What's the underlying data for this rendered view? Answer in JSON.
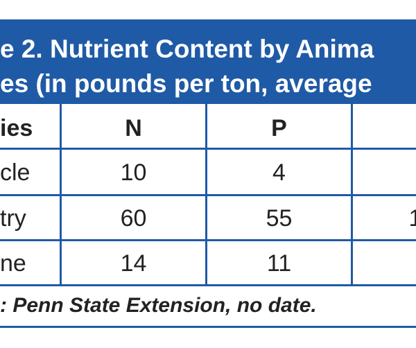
{
  "table": {
    "title_lines": [
      "e 2. Nutrient Content by Anima",
      "es (in pounds per ton, average"
    ],
    "header": [
      "ies",
      "N",
      "P",
      ""
    ],
    "rows": [
      [
        "cle",
        "10",
        "4",
        ""
      ],
      [
        "try",
        "60",
        "55",
        "1"
      ],
      [
        "ne",
        "14",
        "11",
        ""
      ]
    ],
    "source": ": Penn State Extension, no date."
  }
}
